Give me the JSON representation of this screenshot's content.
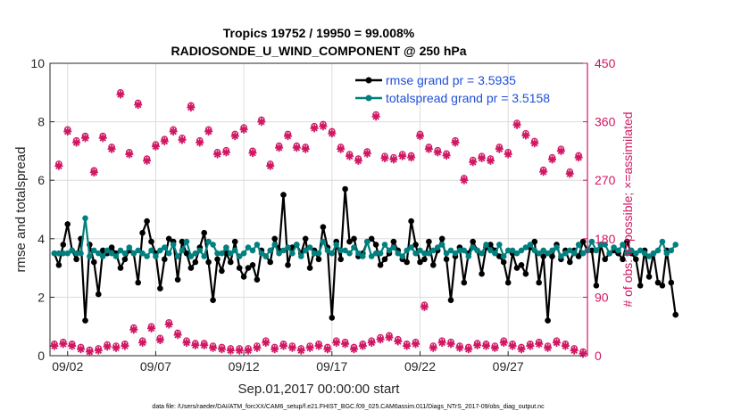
{
  "chart_data": {
    "type": "line",
    "title": "Tropics 19752 / 19950 = 99.008%",
    "subtitle": "RADIOSONDE_U_WIND_COMPONENT @ 250 hPa",
    "xlabel": "Sep.01,2017 00:00:00 start",
    "ylabel_left": "rmse and totalspread",
    "ylabel_right": "# of obs: o=possible; ×=assimilated",
    "ylim_left": [
      0,
      10
    ],
    "ylim_right": [
      0,
      450
    ],
    "yticks_left": [
      "0",
      "2",
      "4",
      "6",
      "8",
      "10"
    ],
    "yticks_right": [
      "0",
      "90",
      "180",
      "270",
      "360",
      "450"
    ],
    "xlim": [
      1.0,
      31.5
    ],
    "xticks": [
      {
        "x": 2,
        "label": "09/02"
      },
      {
        "x": 7,
        "label": "09/07"
      },
      {
        "x": 12,
        "label": "09/12"
      },
      {
        "x": 17,
        "label": "09/17"
      },
      {
        "x": 22,
        "label": "09/22"
      },
      {
        "x": 27,
        "label": "09/27"
      }
    ],
    "grid": true,
    "legend": "top-right",
    "footnote": "data file: /Users/raeder/DAI/ATM_forcXX/CAM6_setup/f.e21.FHIST_BGC.f09_025.CAM6assim.011/Diags_NTrS_2017-09/obs_diag_output.nc",
    "t0": 1.25,
    "dt": 0.25,
    "series": [
      {
        "name": "rmse grand pr = 3.5935",
        "color": "#000000",
        "axis": "left",
        "values": [
          3.5,
          3.1,
          3.8,
          4.5,
          3.6,
          3.3,
          4.0,
          1.2,
          3.8,
          3.2,
          2.1,
          3.6,
          3.5,
          3.7,
          3.5,
          3.0,
          3.3,
          3.6,
          3.5,
          2.5,
          4.2,
          4.6,
          3.9,
          3.5,
          2.3,
          3.3,
          4.0,
          3.9,
          2.6,
          3.9,
          3.5,
          3.0,
          3.2,
          3.7,
          4.2,
          3.2,
          1.9,
          3.3,
          2.9,
          3.5,
          3.2,
          3.9,
          3.0,
          2.7,
          3.0,
          3.1,
          2.6,
          3.6,
          3.4,
          3.2,
          4.0,
          3.6,
          5.5,
          3.1,
          3.7,
          3.8,
          3.5,
          4.0,
          3.0,
          3.6,
          3.3,
          4.4,
          3.7,
          1.3,
          3.9,
          3.3,
          5.7,
          3.9,
          4.0,
          3.4,
          3.5,
          3.9,
          4.0,
          3.8,
          3.1,
          3.3,
          3.5,
          3.9,
          3.6,
          3.3,
          3.2,
          4.6,
          3.8,
          3.2,
          3.3,
          3.9,
          3.1,
          3.6,
          4.0,
          3.3,
          1.9,
          3.4,
          3.7,
          2.5,
          3.5,
          3.9,
          3.6,
          2.8,
          3.7,
          3.8,
          3.6,
          3.4,
          3.2,
          2.5,
          3.5,
          3.0,
          3.1,
          2.8,
          3.7,
          3.9,
          2.5,
          3.4,
          1.2,
          3.4,
          3.8,
          3.3,
          3.6,
          3.2,
          3.6,
          3.4,
          3.9,
          3.6,
          3.6,
          2.4,
          3.8,
          3.3,
          3.5,
          3.6,
          3.5,
          3.3,
          3.9,
          3.5,
          3.3,
          2.4,
          3.6,
          2.7,
          3.5,
          2.5,
          2.4,
          3.6,
          2.5,
          1.4
        ]
      },
      {
        "name": "totalspread grand pr = 3.5158",
        "color": "#00807f",
        "axis": "left",
        "values": [
          3.5,
          3.5,
          3.5,
          3.5,
          3.6,
          3.5,
          3.5,
          4.7,
          3.4,
          3.6,
          3.5,
          3.4,
          3.6,
          3.5,
          3.4,
          3.6,
          3.5,
          3.7,
          3.5,
          3.6,
          3.5,
          3.4,
          3.6,
          3.4,
          3.6,
          3.7,
          3.5,
          3.8,
          3.4,
          3.6,
          3.9,
          3.4,
          3.5,
          3.6,
          3.4,
          3.9,
          3.8,
          3.5,
          3.5,
          3.7,
          3.5,
          3.6,
          3.4,
          3.5,
          3.7,
          3.6,
          3.8,
          3.5,
          3.4,
          3.6,
          3.8,
          3.5,
          3.6,
          3.7,
          3.5,
          3.8,
          3.4,
          3.6,
          3.7,
          3.5,
          3.5,
          3.9,
          3.6,
          3.5,
          3.8,
          3.6,
          3.6,
          3.5,
          3.7,
          3.5,
          3.4,
          3.9,
          3.4,
          3.5,
          3.5,
          3.8,
          3.6,
          3.7,
          3.5,
          3.4,
          3.6,
          3.7,
          3.5,
          3.6,
          3.5,
          3.5,
          3.6,
          3.7,
          3.8,
          3.5,
          3.6,
          3.5,
          3.6,
          3.6,
          3.4,
          3.7,
          3.6,
          3.5,
          3.8,
          3.6,
          3.5,
          3.8,
          3.4,
          3.6,
          3.6,
          3.5,
          3.6,
          3.7,
          3.8,
          3.6,
          3.5,
          3.6,
          3.5,
          3.6,
          3.7,
          3.4,
          3.5,
          3.6,
          3.5,
          3.8,
          3.5,
          3.6,
          3.9,
          3.6,
          3.8,
          3.8,
          3.5,
          3.7,
          3.6,
          3.8,
          3.5,
          3.6,
          3.5,
          3.6,
          3.5,
          3.4,
          3.5,
          3.6,
          3.9,
          3.5,
          3.6,
          3.8
        ]
      }
    ],
    "obs_counts": {
      "color": "#d01763",
      "axis": "right",
      "day_x": [
        1.5,
        2,
        2.5,
        3,
        3.5,
        4,
        4.5,
        5,
        5.5,
        6,
        6.5,
        7,
        7.5,
        8,
        8.5,
        9,
        9.5,
        10,
        10.5,
        11,
        11.5,
        12,
        12.5,
        13,
        13.5,
        14,
        14.5,
        15,
        15.5,
        16,
        16.5,
        17,
        17.5,
        18,
        18.5,
        19,
        19.5,
        20,
        20.5,
        21,
        21.5,
        22,
        22.5,
        23,
        23.5,
        24,
        24.5,
        25,
        25.5,
        26,
        26.5,
        27,
        27.5,
        28,
        28.5,
        29,
        29.5,
        30,
        30.5,
        31
      ],
      "day_assimilated": [
        292,
        345,
        328,
        335,
        282,
        335,
        318,
        402,
        310,
        386,
        300,
        322,
        330,
        345,
        332,
        382,
        328,
        345,
        310,
        313,
        338,
        348,
        312,
        360,
        292,
        320,
        338,
        320,
        318,
        350,
        353,
        342,
        318,
        307,
        300,
        311,
        368,
        304,
        302,
        307,
        305,
        338,
        318,
        313,
        308,
        328,
        270,
        298,
        304,
        300,
        318,
        310,
        355,
        339,
        327,
        283,
        302,
        315,
        280,
        305
      ],
      "day_possible": [
        295,
        348,
        331,
        338,
        285,
        338,
        321,
        405,
        313,
        389,
        303,
        325,
        333,
        348,
        335,
        385,
        331,
        348,
        313,
        316,
        341,
        351,
        315,
        363,
        295,
        323,
        341,
        323,
        321,
        353,
        356,
        345,
        321,
        310,
        303,
        314,
        371,
        307,
        305,
        310,
        308,
        341,
        321,
        316,
        311,
        331,
        273,
        301,
        307,
        303,
        321,
        313,
        358,
        342,
        330,
        286,
        305,
        318,
        283,
        308
      ],
      "night_x": [
        1.25,
        1.75,
        2.25,
        2.75,
        3.25,
        3.75,
        4.25,
        4.75,
        5.25,
        5.75,
        6.25,
        6.75,
        7.25,
        7.75,
        8.25,
        8.75,
        9.25,
        9.75,
        10.25,
        10.75,
        11.25,
        11.75,
        12.25,
        12.75,
        13.25,
        13.75,
        14.25,
        14.75,
        15.25,
        15.75,
        16.25,
        16.75,
        17.25,
        17.75,
        18.25,
        18.75,
        19.25,
        19.75,
        20.25,
        20.75,
        21.25,
        21.75,
        22.25,
        22.75,
        23.25,
        23.75,
        24.25,
        24.75,
        25.25,
        25.75,
        26.25,
        26.75,
        27.25,
        27.75,
        28.25,
        28.75,
        29.25,
        29.75,
        30.25,
        30.75,
        31.25
      ],
      "night_assimilated": [
        15,
        18,
        15,
        10,
        6,
        8,
        14,
        12,
        15,
        40,
        20,
        42,
        24,
        48,
        32,
        20,
        16,
        16,
        12,
        10,
        8,
        8,
        8,
        12,
        20,
        10,
        15,
        12,
        8,
        12,
        15,
        10,
        20,
        18,
        10,
        15,
        20,
        25,
        28,
        22,
        15,
        18,
        75,
        12,
        20,
        18,
        12,
        10,
        16,
        15,
        12,
        20,
        15,
        10,
        15,
        18,
        12,
        20,
        15,
        8,
        3
      ],
      "night_possible": [
        18,
        21,
        18,
        13,
        9,
        11,
        17,
        15,
        18,
        43,
        23,
        45,
        27,
        51,
        35,
        23,
        19,
        19,
        15,
        13,
        11,
        11,
        11,
        15,
        23,
        13,
        18,
        15,
        11,
        15,
        18,
        13,
        23,
        21,
        13,
        18,
        23,
        28,
        31,
        25,
        18,
        21,
        78,
        15,
        23,
        21,
        15,
        13,
        19,
        18,
        15,
        23,
        18,
        13,
        18,
        21,
        15,
        23,
        18,
        11,
        6
      ]
    }
  }
}
